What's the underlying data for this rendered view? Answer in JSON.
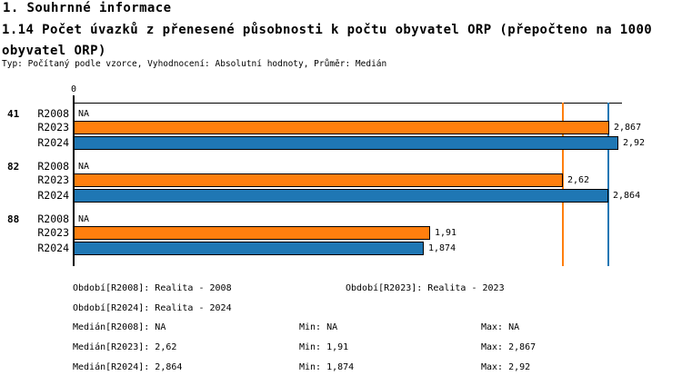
{
  "header": {
    "title": "1. Souhrnné informace",
    "subtitle": "1.14 Počet úvazků z přenesené působnosti k počtu obyvatel ORP (přepočteno na 1000 obyvatel ORP)",
    "meta": "Typ: Počítaný podle vzorce, Vyhodnocení: Absolutní hodnoty, Průměr: Medián"
  },
  "chart_data": {
    "type": "bar",
    "orientation": "horizontal",
    "categories": [
      "41",
      "82",
      "88"
    ],
    "series": [
      {
        "name": "R2008",
        "legend": "Realita - 2008",
        "color": null,
        "values": [
          null,
          null,
          null
        ],
        "display": [
          "NA",
          "NA",
          "NA"
        ]
      },
      {
        "name": "R2023",
        "legend": "Realita - 2023",
        "color": "#ff7f0e",
        "values": [
          2.867,
          2.62,
          1.91
        ],
        "display": [
          "2,867",
          "2,62",
          "1,91"
        ]
      },
      {
        "name": "R2024",
        "legend": "Realita - 2024",
        "color": "#1f77b4",
        "values": [
          2.92,
          2.864,
          1.874
        ],
        "display": [
          "2,92",
          "2,864",
          "1,874"
        ]
      }
    ],
    "xlim": [
      0,
      2.94
    ],
    "axis_origin_tick": "0",
    "grid": false,
    "bar_border_color": "#000000",
    "median_lines": [
      {
        "series": "R2023",
        "value": 2.62,
        "color": "#ff7f0e"
      },
      {
        "series": "R2024",
        "value": 2.864,
        "color": "#1f77b4"
      }
    ],
    "stats": {
      "R2008": {
        "median": "NA",
        "min": "NA",
        "max": "NA"
      },
      "R2023": {
        "median": "2,62",
        "min": "1,91",
        "max": "2,867"
      },
      "R2024": {
        "median": "2,864",
        "min": "1,874",
        "max": "2,92"
      }
    }
  },
  "legend": {
    "obdobi_r2008": "Období[R2008]: Realita - 2008",
    "obdobi_r2023": "Období[R2023]: Realita - 2023",
    "obdobi_r2024": "Období[R2024]: Realita - 2024",
    "median_r2008": "Medián[R2008]: NA",
    "min_r2008": "Min: NA",
    "max_r2008": "Max: NA",
    "median_r2023": "Medián[R2023]: 2,62",
    "min_r2023": "Min: 1,91",
    "max_r2023": "Max: 2,867",
    "median_r2024": "Medián[R2024]: 2,864",
    "min_r2024": "Min: 1,874",
    "max_r2024": "Max: 2,92"
  }
}
